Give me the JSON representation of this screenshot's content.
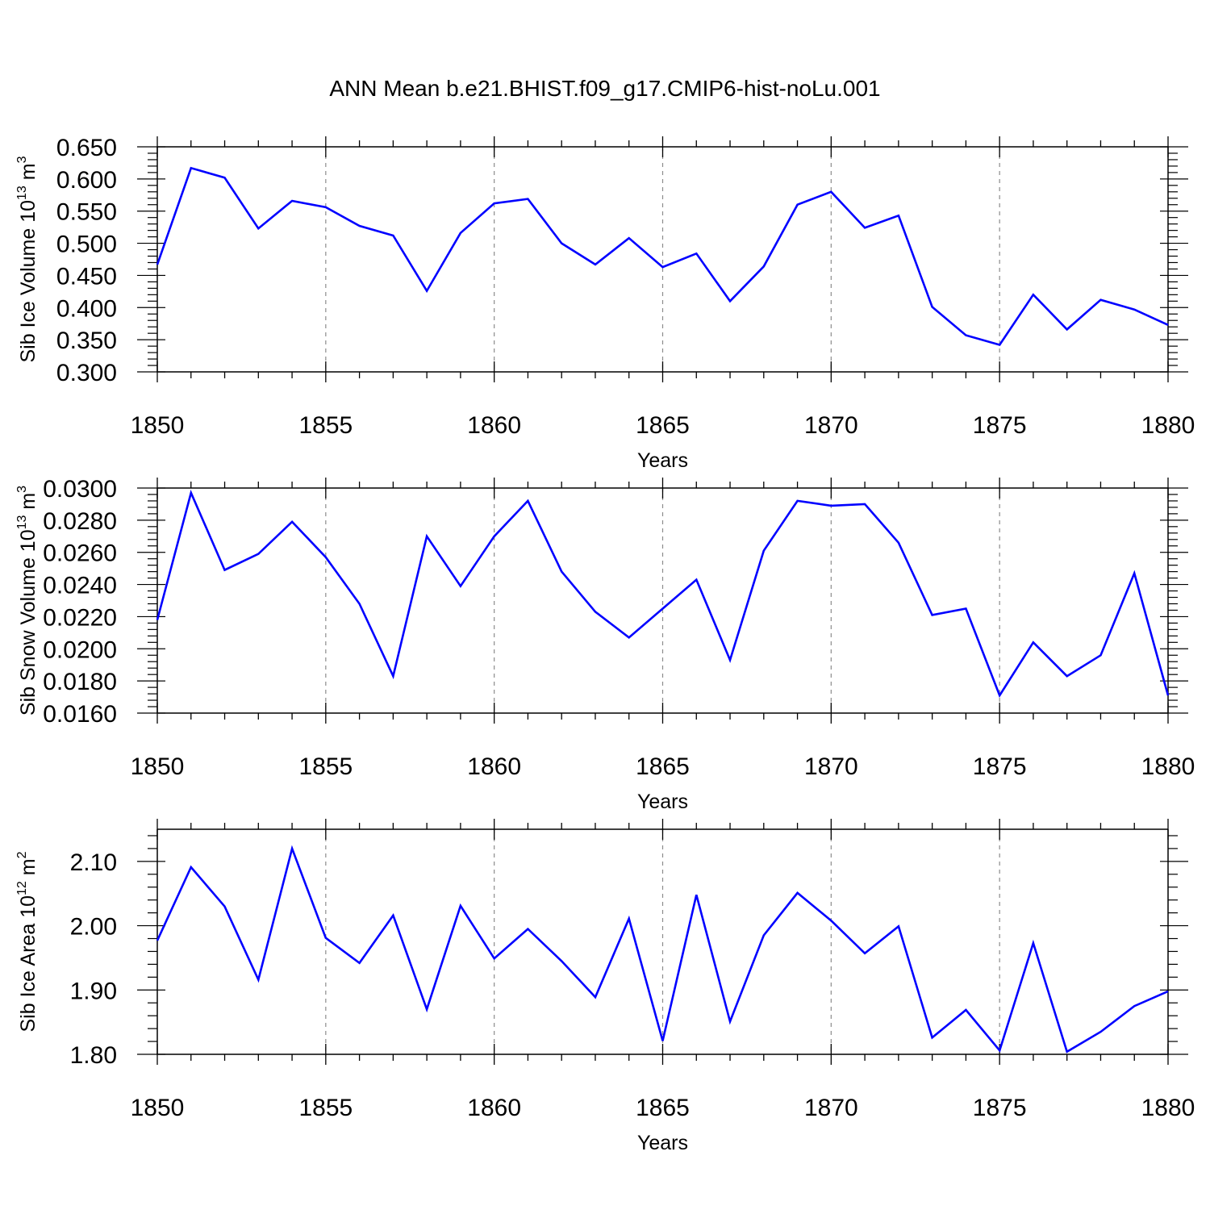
{
  "figure": {
    "title": "ANN Mean b.e21.BHIST.f09_g17.CMIP6-hist-noLu.001"
  },
  "colors": {
    "line": "#0000ff",
    "axis": "#000000",
    "grid": "#8c8c8c"
  },
  "chart_data": [
    {
      "type": "line",
      "title": "",
      "xlabel": "Years",
      "ylabel": "Sib Ice Volume 10",
      "ylabel_exp": "13",
      "ylabel_unit": " m",
      "ylabel_unit_exp": "3",
      "xlim": [
        1850,
        1880
      ],
      "ylim": [
        0.3,
        0.65
      ],
      "yticks": [
        0.3,
        0.35,
        0.4,
        0.45,
        0.5,
        0.55,
        0.6,
        0.65
      ],
      "ytick_labels": [
        "0.300",
        "0.350",
        "0.400",
        "0.450",
        "0.500",
        "0.550",
        "0.600",
        "0.650"
      ],
      "xticks": [
        1850,
        1855,
        1860,
        1865,
        1870,
        1875,
        1880
      ],
      "xtick_labels": [
        "1850",
        "1855",
        "1860",
        "1865",
        "1870",
        "1875",
        "1880"
      ],
      "grid": "vertical dashed at 1855, 1860, 1865, 1870, 1875",
      "series": [
        {
          "name": "Sib Ice Volume",
          "x": [
            1850,
            1851,
            1852,
            1853,
            1854,
            1855,
            1856,
            1857,
            1858,
            1859,
            1860,
            1861,
            1862,
            1863,
            1864,
            1865,
            1866,
            1867,
            1868,
            1869,
            1870,
            1871,
            1872,
            1873,
            1874,
            1875,
            1876,
            1877,
            1878,
            1879,
            1880
          ],
          "values": [
            0.467,
            0.617,
            0.602,
            0.523,
            0.566,
            0.556,
            0.527,
            0.512,
            0.426,
            0.516,
            0.562,
            0.569,
            0.5,
            0.467,
            0.508,
            0.463,
            0.484,
            0.41,
            0.464,
            0.56,
            0.58,
            0.524,
            0.543,
            0.401,
            0.357,
            0.342,
            0.42,
            0.366,
            0.412,
            0.397,
            0.373
          ]
        }
      ]
    },
    {
      "type": "line",
      "title": "",
      "xlabel": "Years",
      "ylabel": "Sib Snow Volume 10",
      "ylabel_exp": "13",
      "ylabel_unit": " m",
      "ylabel_unit_exp": "3",
      "xlim": [
        1850,
        1880
      ],
      "ylim": [
        0.016,
        0.03
      ],
      "yticks": [
        0.016,
        0.018,
        0.02,
        0.022,
        0.024,
        0.026,
        0.028,
        0.03
      ],
      "ytick_labels": [
        "0.0160",
        "0.0180",
        "0.0200",
        "0.0220",
        "0.0240",
        "0.0260",
        "0.0280",
        "0.0300"
      ],
      "xticks": [
        1850,
        1855,
        1860,
        1865,
        1870,
        1875,
        1880
      ],
      "xtick_labels": [
        "1850",
        "1855",
        "1860",
        "1865",
        "1870",
        "1875",
        "1880"
      ],
      "grid": "vertical dashed at 1855, 1860, 1865, 1870, 1875",
      "series": [
        {
          "name": "Sib Snow Volume",
          "x": [
            1850,
            1851,
            1852,
            1853,
            1854,
            1855,
            1856,
            1857,
            1858,
            1859,
            1860,
            1861,
            1862,
            1863,
            1864,
            1865,
            1866,
            1867,
            1868,
            1869,
            1870,
            1871,
            1872,
            1873,
            1874,
            1875,
            1876,
            1877,
            1878,
            1879,
            1880
          ],
          "values": [
            0.0218,
            0.0297,
            0.0249,
            0.0259,
            0.0279,
            0.0257,
            0.0228,
            0.0183,
            0.027,
            0.0239,
            0.027,
            0.0292,
            0.0248,
            0.0223,
            0.0207,
            0.0225,
            0.0243,
            0.0193,
            0.0261,
            0.0292,
            0.0289,
            0.029,
            0.0266,
            0.0221,
            0.0225,
            0.0171,
            0.0204,
            0.0183,
            0.0196,
            0.0247,
            0.0171
          ]
        }
      ]
    },
    {
      "type": "line",
      "title": "",
      "xlabel": "Years",
      "ylabel": "Sib Ice Area 10",
      "ylabel_exp": "12",
      "ylabel_unit": " m",
      "ylabel_unit_exp": "2",
      "xlim": [
        1850,
        1880
      ],
      "ylim": [
        1.8,
        2.15
      ],
      "yticks": [
        1.8,
        1.9,
        2.0,
        2.1
      ],
      "ytick_labels": [
        "1.80",
        "1.90",
        "2.00",
        "2.10"
      ],
      "xticks": [
        1850,
        1855,
        1860,
        1865,
        1870,
        1875,
        1880
      ],
      "xtick_labels": [
        "1850",
        "1855",
        "1860",
        "1865",
        "1870",
        "1875",
        "1880"
      ],
      "grid": "vertical dashed at 1855, 1860, 1865, 1870, 1875",
      "series": [
        {
          "name": "Sib Ice Area",
          "x": [
            1850,
            1851,
            1852,
            1853,
            1854,
            1855,
            1856,
            1857,
            1858,
            1859,
            1860,
            1861,
            1862,
            1863,
            1864,
            1865,
            1866,
            1867,
            1868,
            1869,
            1870,
            1871,
            1872,
            1873,
            1874,
            1875,
            1876,
            1877,
            1878,
            1879,
            1880
          ],
          "values": [
            1.977,
            2.091,
            2.03,
            1.916,
            2.12,
            1.981,
            1.942,
            2.016,
            1.87,
            2.031,
            1.949,
            1.995,
            1.945,
            1.889,
            2.011,
            1.821,
            2.048,
            1.851,
            1.985,
            2.051,
            2.008,
            1.957,
            1.999,
            1.826,
            1.869,
            1.806,
            1.973,
            1.804,
            1.835,
            1.875,
            1.898
          ]
        }
      ]
    }
  ]
}
